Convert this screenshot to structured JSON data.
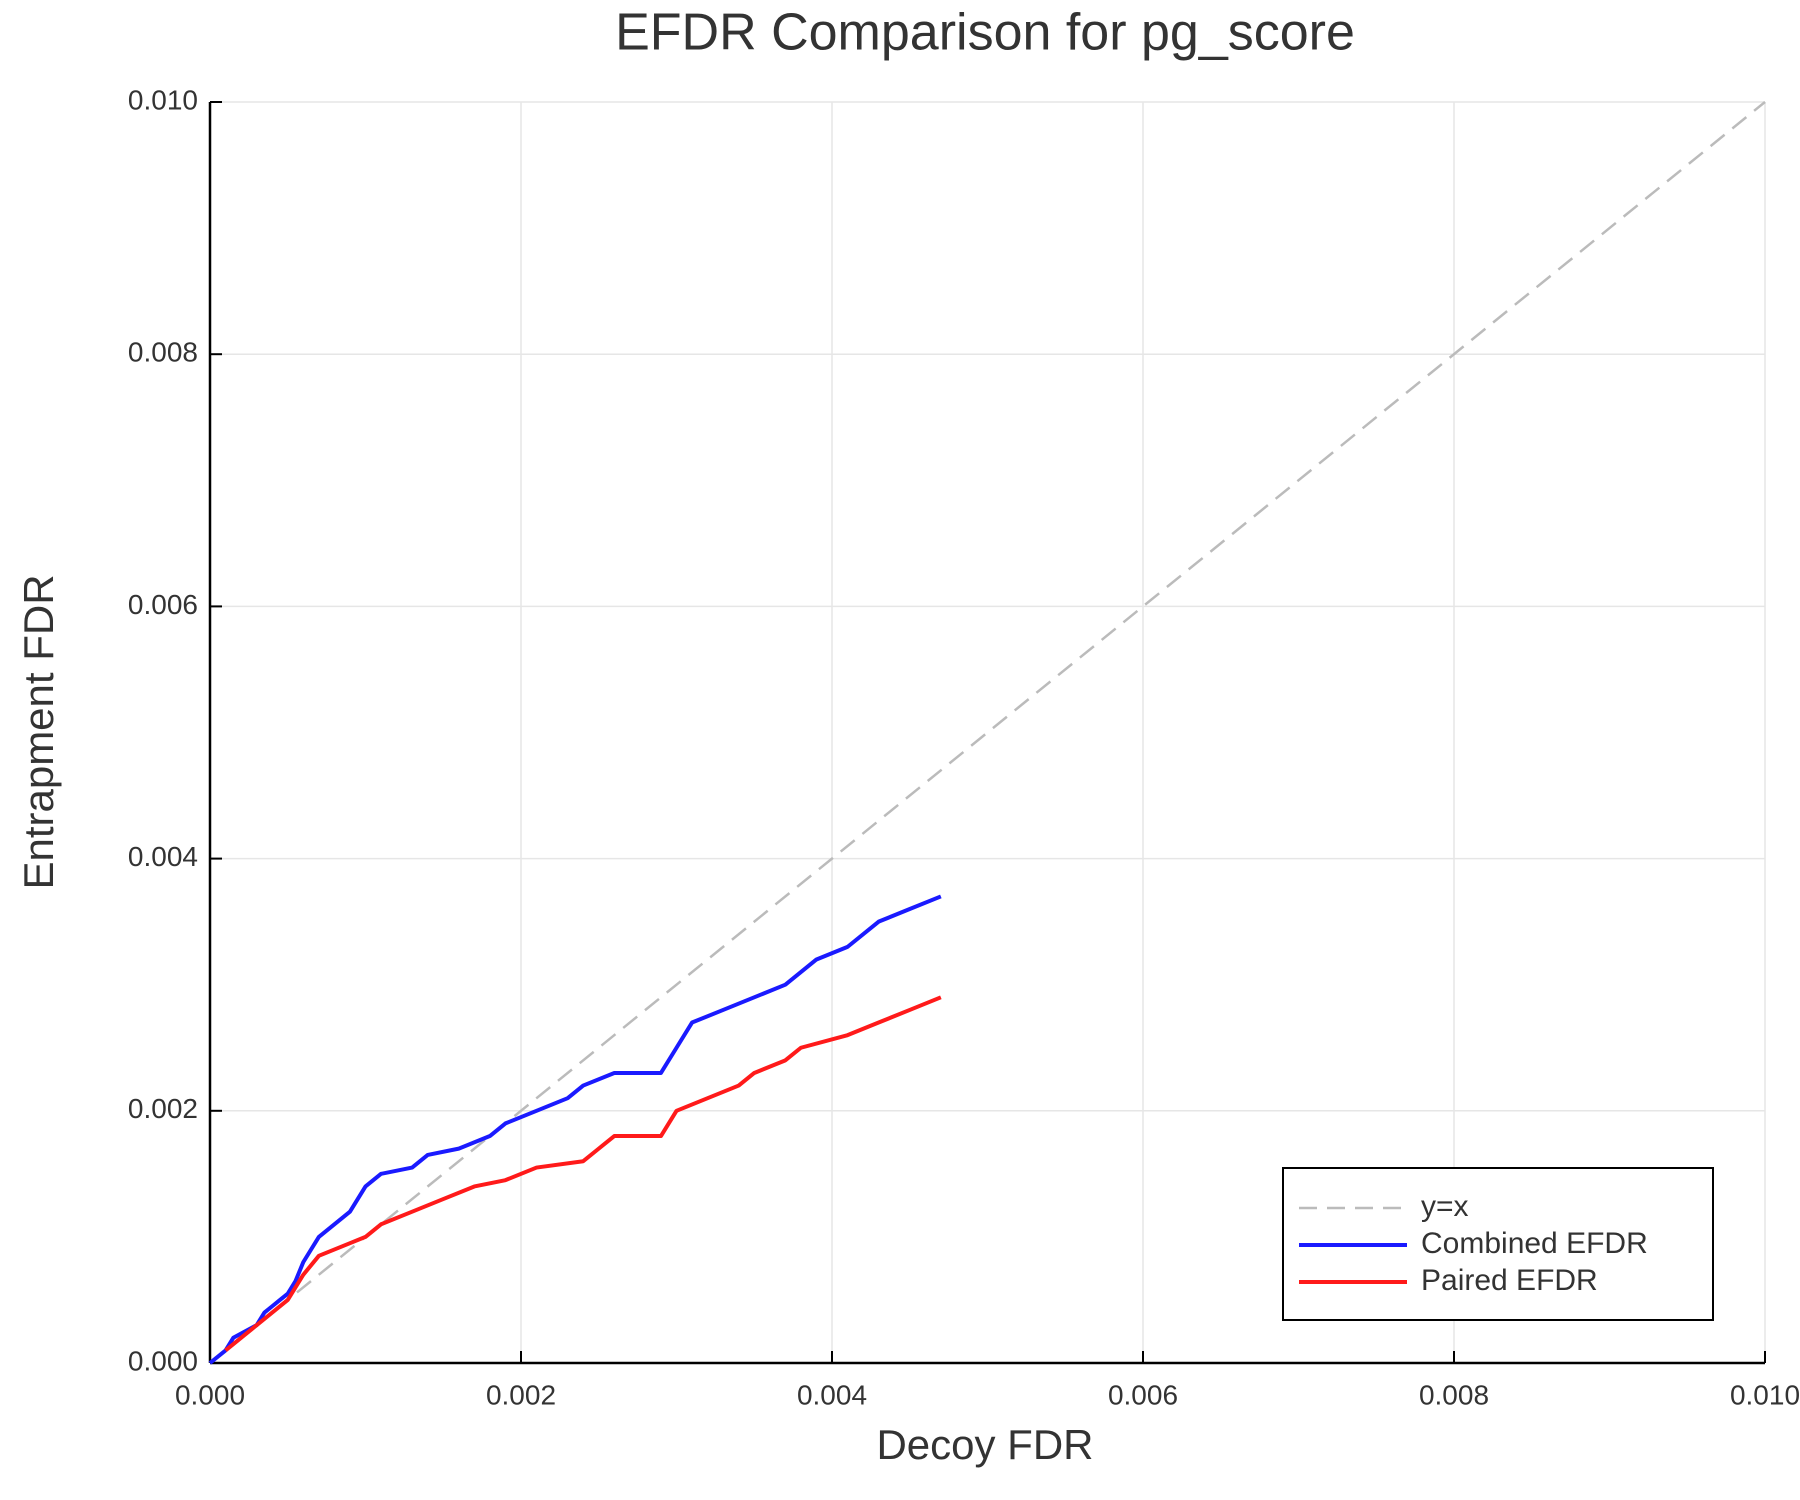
{
  "chart_data": {
    "type": "line",
    "title": "EFDR Comparison for pg_score",
    "x_label": "Decoy FDR",
    "y_label": "Entrapment FDR",
    "xlim": [
      0,
      0.01
    ],
    "ylim": [
      0,
      0.01
    ],
    "xticks": [
      {
        "value": 0,
        "label": "0.000"
      },
      {
        "value": 0.002,
        "label": "0.002"
      },
      {
        "value": 0.004,
        "label": "0.004"
      },
      {
        "value": 0.006,
        "label": "0.006"
      },
      {
        "value": 0.008,
        "label": "0.008"
      },
      {
        "value": 0.01,
        "label": "0.010"
      }
    ],
    "yticks": [
      {
        "value": 0,
        "label": "0.000"
      },
      {
        "value": 0.002,
        "label": "0.002"
      },
      {
        "value": 0.004,
        "label": "0.004"
      },
      {
        "value": 0.006,
        "label": "0.006"
      },
      {
        "value": 0.008,
        "label": "0.008"
      },
      {
        "value": 0.01,
        "label": "0.010"
      }
    ],
    "grid": true,
    "legend": "bottom right",
    "series": [
      {
        "name": "y=x",
        "color": "#bbbbbb",
        "dashed": true,
        "x": [
          0,
          0.01
        ],
        "values": [
          0,
          0.01
        ]
      },
      {
        "name": "Combined EFDR",
        "color": "#1a1aff",
        "dashed": false,
        "x": [
          0,
          0.0001,
          0.00015,
          0.0003,
          0.00035,
          0.0004,
          0.00045,
          0.0005,
          0.00055,
          0.0006,
          0.00065,
          0.0007,
          0.0008,
          0.0009,
          0.001,
          0.0011,
          0.0013,
          0.0014,
          0.0016,
          0.0018,
          0.0019,
          0.0021,
          0.0023,
          0.0024,
          0.0026,
          0.0029,
          0.003,
          0.0031,
          0.0033,
          0.0035,
          0.0037,
          0.0039,
          0.0041,
          0.0043,
          0.0045,
          0.0047
        ],
        "values": [
          0,
          0.0001,
          0.0002,
          0.0003,
          0.0004,
          0.00045,
          0.0005,
          0.00055,
          0.00065,
          0.0008,
          0.0009,
          0.001,
          0.0011,
          0.0012,
          0.0014,
          0.0015,
          0.00155,
          0.00165,
          0.0017,
          0.0018,
          0.0019,
          0.002,
          0.0021,
          0.0022,
          0.0023,
          0.0023,
          0.0025,
          0.0027,
          0.0028,
          0.0029,
          0.003,
          0.0032,
          0.0033,
          0.0035,
          0.0036,
          0.0037
        ]
      },
      {
        "name": "Paired EFDR",
        "color": "#ff1a1a",
        "dashed": false,
        "x": [
          0.0001,
          0.0002,
          0.0003,
          0.0004,
          0.0005,
          0.00055,
          0.0006,
          0.0007,
          0.0009,
          0.001,
          0.0011,
          0.0013,
          0.0015,
          0.0017,
          0.0019,
          0.0021,
          0.0024,
          0.0025,
          0.0026,
          0.0029,
          0.003,
          0.0032,
          0.0034,
          0.0035,
          0.0037,
          0.0038,
          0.0041,
          0.0043,
          0.0045,
          0.0047
        ],
        "values": [
          0.0001,
          0.0002,
          0.0003,
          0.0004,
          0.0005,
          0.0006,
          0.0007,
          0.00085,
          0.00095,
          0.001,
          0.0011,
          0.0012,
          0.0013,
          0.0014,
          0.00145,
          0.00155,
          0.0016,
          0.0017,
          0.0018,
          0.0018,
          0.002,
          0.0021,
          0.0022,
          0.0023,
          0.0024,
          0.0025,
          0.0026,
          0.0027,
          0.0028,
          0.0029
        ]
      }
    ]
  }
}
